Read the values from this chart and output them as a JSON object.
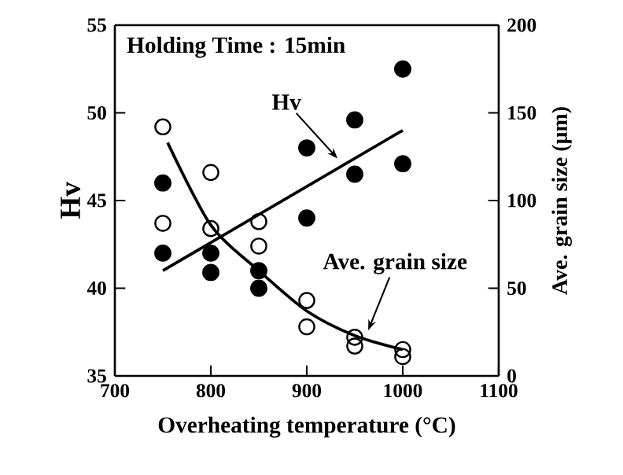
{
  "chart_data": {
    "type": "scatter",
    "xlabel": "Overheating temperature (°C)",
    "ylabel": "Hv",
    "y2label": "Ave. grain size (μm)",
    "xlim": [
      700,
      1100
    ],
    "ylim": [
      35,
      55
    ],
    "y2lim": [
      0,
      200
    ],
    "xticks": [
      700,
      800,
      900,
      1000,
      1100
    ],
    "yticks": [
      35,
      40,
      45,
      50,
      55
    ],
    "y2ticks": [
      0,
      50,
      100,
      150,
      200
    ],
    "marker": "circle",
    "series": [
      {
        "color": "#000000",
        "x": [
          750,
          750,
          800,
          800,
          850,
          850,
          900,
          900,
          950,
          950,
          1000,
          1000
        ],
        "values": [
          46.0,
          42.0,
          42.0,
          40.9,
          41.0,
          40.0,
          48.0,
          44.0,
          49.6,
          46.5,
          52.5,
          47.1
        ]
      },
      {
        "axis": "y2",
        "color": "#000000",
        "x": [
          750,
          750,
          800,
          800,
          850,
          850,
          900,
          900,
          950,
          950,
          1000,
          1000
        ],
        "values": [
          142,
          87,
          116,
          84,
          88,
          74,
          43,
          28,
          22,
          17,
          15,
          11
        ]
      },
      {
        "type": "line",
        "color": "#000000",
        "marker": "none",
        "x": [
          750,
          1000
        ],
        "values": [
          41.0,
          49.0
        ]
      },
      {
        "type": "line",
        "axis": "y2",
        "color": "#000000",
        "marker": "none",
        "x": [
          755,
          800,
          850,
          900,
          950,
          1000
        ],
        "values": [
          133,
          86,
          60,
          37,
          23,
          15
        ]
      }
    ],
    "annotations": [
      "Holding Time : 15min",
      "Hv",
      "Ave. grain size"
    ]
  }
}
